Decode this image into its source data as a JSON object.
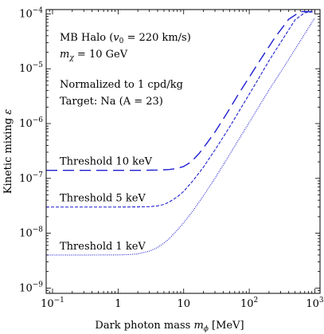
{
  "chart_data": {
    "type": "line",
    "title": "",
    "xlabel": "Dark photon mass m_φ [MeV]",
    "ylabel": "Kinetic mixing ε",
    "xscale": "log",
    "yscale": "log",
    "xlim": [
      0.08,
      1200
    ],
    "ylim": [
      8e-10,
      0.00012
    ],
    "x_ticks": [
      0.1,
      1,
      10,
      100,
      1000
    ],
    "y_ticks": [
      1e-09,
      1e-08,
      1e-07,
      1e-06,
      1e-05,
      0.0001
    ],
    "grid": false,
    "annotations": {
      "halo": "MB Halo (v₀ = 220 km/s)",
      "mass": "m_χ = 10 GeV",
      "normalization": "Normalized to 1 cpd/kg",
      "target": "Target: Na (A = 23)"
    },
    "series": [
      {
        "name": "Threshold 10 keV",
        "style": "long-dash",
        "color": "#1f1fd1",
        "x": [
          0.08,
          0.3,
          1,
          2,
          4,
          6,
          8,
          10,
          13,
          17,
          22,
          30,
          45,
          70,
          100,
          150,
          250,
          400,
          600,
          800,
          1000
        ],
        "y": [
          1.4e-07,
          1.4e-07,
          1.4e-07,
          1.4e-07,
          1.42e-07,
          1.45e-07,
          1.52e-07,
          1.65e-07,
          2e-07,
          2.8e-07,
          4.2e-07,
          7e-07,
          1.5e-06,
          3.6e-06,
          7e-06,
          1.5e-05,
          3.8e-05,
          8e-05,
          0.00011,
          0.00011,
          0.00011
        ]
      },
      {
        "name": "Threshold 5 keV",
        "style": "short-dash",
        "color": "#1f1fd1",
        "x": [
          0.08,
          0.3,
          1,
          2,
          3,
          4,
          5,
          6,
          8,
          10,
          14,
          20,
          30,
          50,
          80,
          130,
          200,
          350,
          500,
          700,
          1000
        ],
        "y": [
          3e-08,
          3e-08,
          3e-08,
          3.02e-08,
          3.05e-08,
          3.15e-08,
          3.35e-08,
          3.7e-08,
          4.6e-08,
          5.8e-08,
          9.2e-08,
          1.6e-07,
          3.3e-07,
          8.6e-07,
          2.2e-06,
          5.8e-06,
          1.4e-05,
          4e-05,
          7.8e-05,
          0.000105,
          0.00011
        ]
      },
      {
        "name": "Threshold 1 keV",
        "style": "dotted",
        "color": "#1f1fd1",
        "x": [
          0.08,
          0.3,
          1,
          1.5,
          2,
          3,
          4,
          5,
          6,
          8,
          10,
          14,
          20,
          30,
          50,
          80,
          130,
          200,
          350,
          600,
          1000
        ],
        "y": [
          4e-09,
          4e-09,
          4.02e-09,
          4.08e-09,
          4.2e-09,
          4.7e-09,
          5.5e-09,
          6.6e-09,
          7.9e-09,
          1.14e-08,
          1.55e-08,
          2.6e-08,
          4.8e-08,
          1e-07,
          2.7e-07,
          6.8e-07,
          1.75e-06,
          4.1e-06,
          1.15e-05,
          3.2e-05,
          8.5e-05
        ]
      }
    ]
  }
}
